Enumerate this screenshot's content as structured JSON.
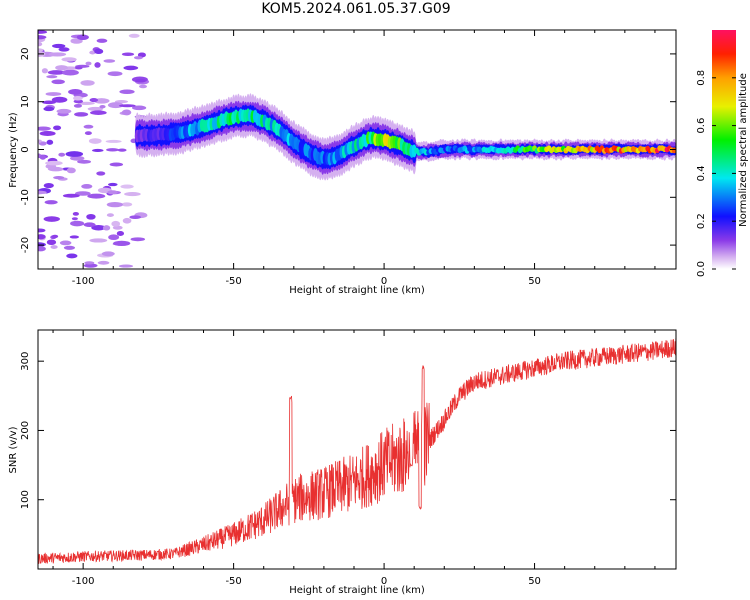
{
  "title": "KOM5.2024.061.05.37.G09",
  "chart_data": [
    {
      "type": "heatmap",
      "xlabel": "Height of straight line (km)",
      "ylabel": "Frequency (Hz)",
      "xlim": [
        -115,
        97
      ],
      "ylim": [
        -25,
        25
      ],
      "x_ticks": [
        -100,
        -50,
        0,
        50
      ],
      "y_ticks": [
        -20,
        -10,
        0,
        10,
        20
      ],
      "colorbar": {
        "label": "Normalized spectral amplitude",
        "range": [
          0,
          1
        ],
        "ticks": [
          0.0,
          0.2,
          0.4,
          0.6,
          0.8
        ],
        "tick_labels": [
          "0.0",
          "0.2",
          "0.4",
          "0.6",
          "0.8"
        ]
      },
      "ridge": {
        "x": [
          -82,
          -75,
          -68,
          -62,
          -57,
          -52,
          -48,
          -44,
          -40,
          -36,
          -32,
          -28,
          -24,
          -20,
          -16,
          -12,
          -8,
          -4,
          0,
          5,
          10,
          15,
          20,
          30,
          40,
          50,
          60,
          70,
          80,
          90,
          97
        ],
        "y": [
          3,
          3,
          3.5,
          4.5,
          5.5,
          6.5,
          7,
          7,
          6,
          4.5,
          2.5,
          0.5,
          -1,
          -2,
          -1.5,
          0,
          1.5,
          2.5,
          2,
          1,
          -0.5,
          -0.5,
          0,
          0,
          0,
          0,
          0,
          0,
          0,
          0,
          0
        ],
        "amplitude": [
          0.15,
          0.2,
          0.3,
          0.4,
          0.45,
          0.5,
          0.5,
          0.5,
          0.45,
          0.4,
          0.35,
          0.3,
          0.3,
          0.3,
          0.35,
          0.4,
          0.45,
          0.6,
          0.7,
          0.6,
          0.45,
          0.35,
          0.3,
          0.35,
          0.45,
          0.6,
          0.75,
          0.85,
          0.9,
          0.95,
          1.0
        ]
      },
      "noise_region": {
        "x": [
          -115,
          -80
        ],
        "y": [
          -25,
          25
        ],
        "amplitude": 0.05
      }
    },
    {
      "type": "line",
      "xlabel": "Height of straight line (km)",
      "ylabel": "SNR (v/v)",
      "xlim": [
        -115,
        97
      ],
      "ylim": [
        0,
        345
      ],
      "x_ticks": [
        -100,
        -50,
        0,
        50
      ],
      "y_ticks": [
        100,
        200,
        300
      ],
      "line_color": "#e83030",
      "envelope": {
        "x": [
          -115,
          -100,
          -80,
          -70,
          -60,
          -50,
          -40,
          -30,
          -20,
          -10,
          0,
          5,
          10,
          15,
          20,
          25,
          30,
          40,
          50,
          60,
          70,
          80,
          90,
          97
        ],
        "y": [
          15,
          18,
          20,
          22,
          35,
          50,
          70,
          100,
          110,
          125,
          150,
          160,
          170,
          185,
          215,
          250,
          270,
          280,
          290,
          300,
          305,
          310,
          315,
          320
        ]
      },
      "peaks": [
        {
          "x": -31,
          "y": 250
        },
        {
          "x": 9,
          "y": 155
        },
        {
          "x": 13,
          "y": 295
        }
      ],
      "dips": [
        {
          "x": 12,
          "y": 85
        }
      ]
    }
  ]
}
